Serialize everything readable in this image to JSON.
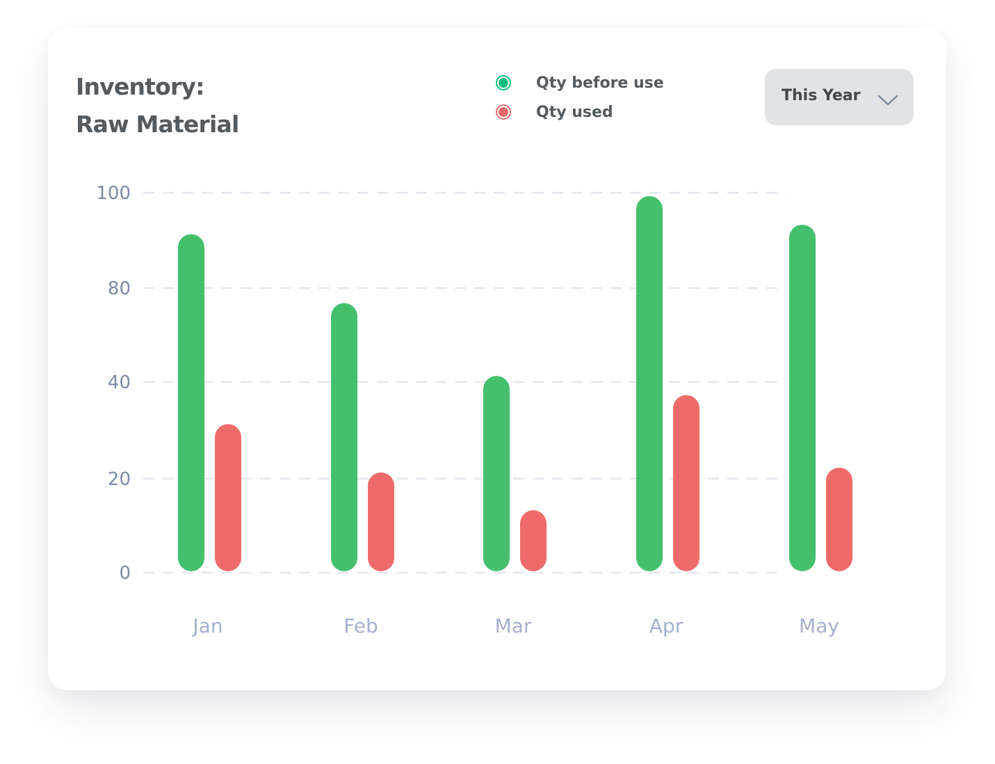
{
  "card": {
    "title_line1": "Inventory:",
    "title_line2": "Raw Material"
  },
  "legend": {
    "items": [
      {
        "label": "Qty before use",
        "color": "#44c06c",
        "dot_color": "#0fbf80"
      },
      {
        "label": "Qty used",
        "color": "#ef6b6b",
        "dot_color": "#ef6b6b"
      }
    ]
  },
  "filter": {
    "selected": "This Year",
    "icon": "chevron-down-icon"
  },
  "colors": {
    "axis_text": "#7c8aa5",
    "month_text": "#a4b0cc",
    "grid": "#e3e6ec"
  },
  "chart_data": {
    "type": "bar",
    "title": "Inventory: Raw Material",
    "categories": [
      "Jan",
      "Feb",
      "Mar",
      "Apr",
      "May"
    ],
    "series": [
      {
        "name": "Qty before use",
        "color": "#44c06c",
        "values": [
          91,
          73,
          42,
          99,
          93
        ]
      },
      {
        "name": "Qty used",
        "color": "#ef6b6b",
        "values": [
          31,
          21,
          13,
          37,
          22
        ]
      }
    ],
    "y_ticks": [
      {
        "label": "100",
        "value": 100
      },
      {
        "label": "80",
        "value": 80
      },
      {
        "label": "40",
        "value": 40
      },
      {
        "label": "20",
        "value": 20
      },
      {
        "label": "0",
        "value": 0
      }
    ],
    "xlabel": "",
    "ylabel": "",
    "grid": true,
    "grid_style": "dashed",
    "legend_position": "top"
  }
}
